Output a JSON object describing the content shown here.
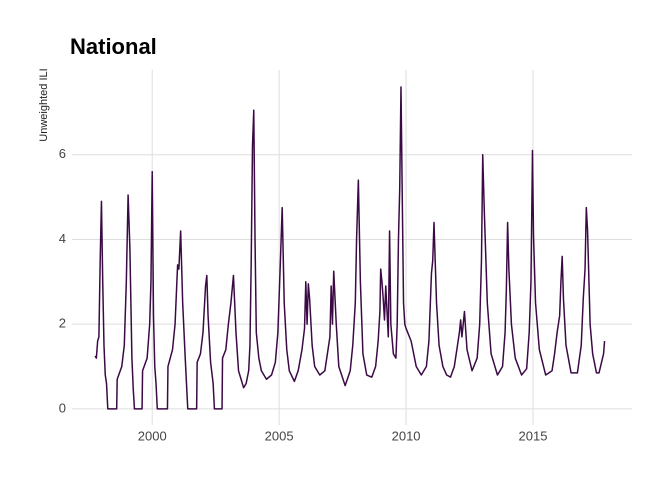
{
  "chart_data": {
    "type": "line",
    "title": "National",
    "y_label": "Unweighted ILI",
    "x": [
      1997.75,
      1997.8,
      1997.85,
      1997.9,
      1997.95,
      1998.0,
      1998.05,
      1998.1,
      1998.15,
      1998.2,
      1998.25,
      1998.6,
      1998.62,
      1998.8,
      1998.9,
      1998.98,
      1999.05,
      1999.12,
      1999.2,
      1999.25,
      1999.3,
      1999.6,
      1999.62,
      1999.8,
      1999.9,
      1999.95,
      2000.0,
      2000.05,
      2000.1,
      2000.15,
      2000.2,
      2000.6,
      2000.62,
      2000.8,
      2000.9,
      2001.0,
      2001.05,
      2001.12,
      2001.2,
      2001.3,
      2001.35,
      2001.4,
      2001.75,
      2001.77,
      2001.9,
      2002.0,
      2002.1,
      2002.15,
      2002.2,
      2002.3,
      2002.4,
      2002.45,
      2002.75,
      2002.77,
      2002.9,
      2003.0,
      2003.1,
      2003.2,
      2003.3,
      2003.4,
      2003.5,
      2003.6,
      2003.7,
      2003.8,
      2003.85,
      2003.9,
      2003.95,
      2004.0,
      2004.05,
      2004.1,
      2004.2,
      2004.3,
      2004.5,
      2004.7,
      2004.85,
      2004.95,
      2005.05,
      2005.12,
      2005.2,
      2005.3,
      2005.4,
      2005.6,
      2005.75,
      2005.9,
      2006.0,
      2006.05,
      2006.1,
      2006.15,
      2006.2,
      2006.3,
      2006.4,
      2006.6,
      2006.8,
      2006.9,
      2007.0,
      2007.05,
      2007.1,
      2007.15,
      2007.25,
      2007.35,
      2007.6,
      2007.8,
      2007.9,
      2008.0,
      2008.05,
      2008.12,
      2008.2,
      2008.3,
      2008.45,
      2008.65,
      2008.8,
      2008.9,
      2008.97,
      2009.0,
      2009.05,
      2009.1,
      2009.15,
      2009.2,
      2009.3,
      2009.35,
      2009.4,
      2009.5,
      2009.6,
      2009.65,
      2009.7,
      2009.75,
      2009.8,
      2009.85,
      2009.9,
      2009.95,
      2010.0,
      2010.2,
      2010.4,
      2010.6,
      2010.8,
      2010.9,
      2011.0,
      2011.05,
      2011.1,
      2011.2,
      2011.3,
      2011.45,
      2011.6,
      2011.75,
      2011.9,
      2012.0,
      2012.1,
      2012.15,
      2012.2,
      2012.3,
      2012.4,
      2012.6,
      2012.8,
      2012.9,
      2012.97,
      2013.02,
      2013.08,
      2013.2,
      2013.35,
      2013.6,
      2013.8,
      2013.9,
      2013.95,
      2014.0,
      2014.05,
      2014.15,
      2014.3,
      2014.55,
      2014.75,
      2014.85,
      2014.92,
      2014.98,
      2015.02,
      2015.1,
      2015.25,
      2015.5,
      2015.75,
      2015.85,
      2015.95,
      2016.05,
      2016.1,
      2016.15,
      2016.2,
      2016.3,
      2016.5,
      2016.75,
      2016.9,
      2016.98,
      2017.05,
      2017.1,
      2017.15,
      2017.25,
      2017.35,
      2017.5,
      2017.6,
      2017.7,
      2017.78,
      2017.82
    ],
    "series": [
      {
        "color": "#3b0a45",
        "values": [
          1.25,
          1.2,
          1.6,
          1.7,
          3.5,
          4.9,
          3.0,
          1.5,
          0.8,
          0.6,
          0,
          0,
          0.7,
          1.0,
          1.5,
          3.0,
          5.05,
          3.8,
          1.2,
          0.5,
          0,
          0,
          0.9,
          1.2,
          2.0,
          3.0,
          5.6,
          2.2,
          1.0,
          0.6,
          0,
          0,
          1.0,
          1.4,
          2.0,
          3.4,
          3.3,
          4.2,
          2.5,
          1.2,
          0.6,
          0,
          0,
          1.1,
          1.3,
          1.8,
          2.9,
          3.15,
          2.2,
          1.1,
          0.6,
          0,
          0,
          1.2,
          1.4,
          2.0,
          2.5,
          3.15,
          1.8,
          0.9,
          0.7,
          0.5,
          0.6,
          0.9,
          1.5,
          3.5,
          6.2,
          7.05,
          4.0,
          1.8,
          1.2,
          0.9,
          0.7,
          0.8,
          1.1,
          1.8,
          3.5,
          4.75,
          2.5,
          1.4,
          0.9,
          0.65,
          0.9,
          1.4,
          1.9,
          3.0,
          2.0,
          2.95,
          2.6,
          1.5,
          1.0,
          0.8,
          0.9,
          1.3,
          1.7,
          2.9,
          2.0,
          3.25,
          2.0,
          1.0,
          0.55,
          0.9,
          1.5,
          2.5,
          4.0,
          5.4,
          3.0,
          1.3,
          0.8,
          0.75,
          1.0,
          1.6,
          2.3,
          3.3,
          3.0,
          2.6,
          2.1,
          2.9,
          1.7,
          4.2,
          2.0,
          1.3,
          1.2,
          2.0,
          4.0,
          5.2,
          7.6,
          5.0,
          2.5,
          2.0,
          1.9,
          1.6,
          1.0,
          0.8,
          1.0,
          1.6,
          3.2,
          3.5,
          4.4,
          2.5,
          1.5,
          1.0,
          0.8,
          0.75,
          1.0,
          1.4,
          1.8,
          2.1,
          1.7,
          2.3,
          1.4,
          0.9,
          1.2,
          2.0,
          3.5,
          6.0,
          4.7,
          2.5,
          1.3,
          0.8,
          1.0,
          1.8,
          2.8,
          4.4,
          3.3,
          2.0,
          1.2,
          0.8,
          0.95,
          1.8,
          3.0,
          6.1,
          4.1,
          2.5,
          1.4,
          0.8,
          0.9,
          1.3,
          1.8,
          2.2,
          3.0,
          3.6,
          2.6,
          1.5,
          0.85,
          0.85,
          1.5,
          2.6,
          3.3,
          4.75,
          4.2,
          2.0,
          1.3,
          0.85,
          0.85,
          1.1,
          1.3,
          1.6
        ]
      }
    ],
    "xlim": [
      1996.84,
      2018.9
    ],
    "ylim": [
      -0.38,
      8.0
    ],
    "xticks": [
      2000,
      2005,
      2010,
      2015
    ],
    "yticks": [
      0,
      2,
      4,
      6
    ],
    "grid": true
  }
}
